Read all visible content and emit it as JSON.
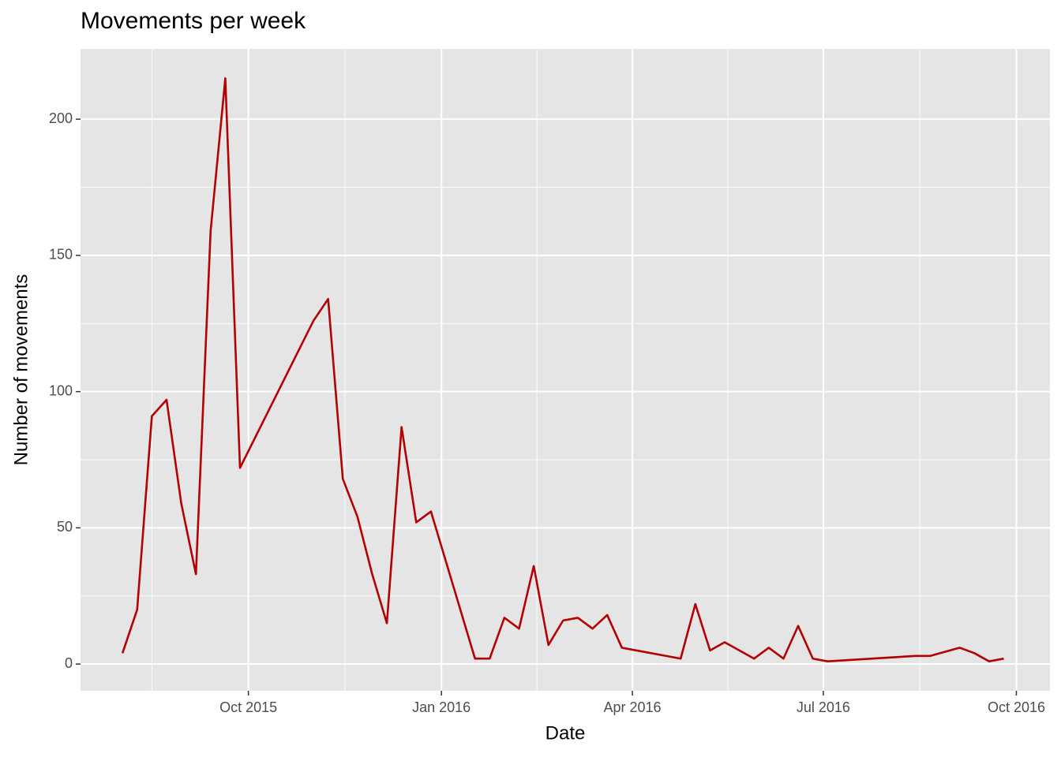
{
  "chart_data": {
    "type": "line",
    "title": "Movements per week",
    "x_label": "Date",
    "y_label": "Number of movements",
    "x": [
      "2015-08-02",
      "2015-08-09",
      "2015-08-16",
      "2015-08-23",
      "2015-08-30",
      "2015-09-06",
      "2015-09-13",
      "2015-09-20",
      "2015-09-27",
      "2015-11-01",
      "2015-11-08",
      "2015-11-15",
      "2015-11-22",
      "2015-11-29",
      "2015-12-06",
      "2015-12-13",
      "2015-12-20",
      "2015-12-27",
      "2016-01-17",
      "2016-01-24",
      "2016-01-31",
      "2016-02-07",
      "2016-02-14",
      "2016-02-21",
      "2016-02-28",
      "2016-03-06",
      "2016-03-13",
      "2016-03-20",
      "2016-03-27",
      "2016-04-24",
      "2016-05-01",
      "2016-05-08",
      "2016-05-15",
      "2016-05-29",
      "2016-06-05",
      "2016-06-12",
      "2016-06-19",
      "2016-06-26",
      "2016-07-03",
      "2016-08-14",
      "2016-08-21",
      "2016-09-04",
      "2016-09-11",
      "2016-09-18",
      "2016-09-25"
    ],
    "series": [
      {
        "name": "Movements",
        "color": "#b30000",
        "values": [
          4,
          20,
          91,
          97,
          59,
          33,
          159,
          215,
          72,
          126,
          134,
          68,
          54,
          33,
          15,
          87,
          52,
          56,
          2,
          2,
          17,
          13,
          36,
          7,
          16,
          17,
          13,
          18,
          6,
          2,
          22,
          5,
          8,
          2,
          6,
          2,
          14,
          2,
          1,
          3,
          3,
          6,
          4,
          1,
          2
        ]
      }
    ],
    "xlim": [
      "2015-07-13",
      "2016-10-17"
    ],
    "xticks": [
      {
        "value": "2015-10-01",
        "label": "Oct 2015"
      },
      {
        "value": "2016-01-01",
        "label": "Jan 2016"
      },
      {
        "value": "2016-04-01",
        "label": "Apr 2016"
      },
      {
        "value": "2016-07-01",
        "label": "Jul 2016"
      },
      {
        "value": "2016-10-01",
        "label": "Oct 2016"
      }
    ],
    "ylim": [
      -9.8,
      225.8
    ],
    "yticks": [
      0,
      50,
      100,
      150,
      200
    ],
    "grid": true,
    "panel_color": "#e5e5e5"
  }
}
